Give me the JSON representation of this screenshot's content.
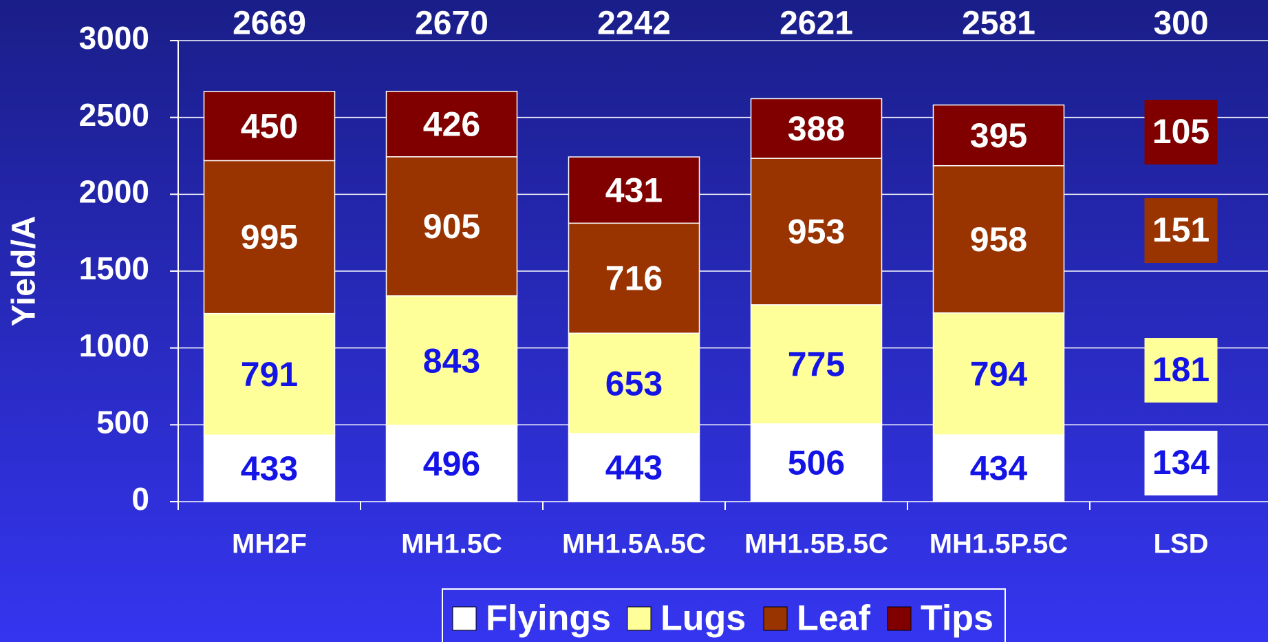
{
  "chart_data": {
    "type": "stacked_bar",
    "ylabel": "Yield/A",
    "categories": [
      "MH2F",
      "MH1.5C",
      "MH1.5A.5C",
      "MH1.5B.5C",
      "MH1.5P.5C"
    ],
    "series": [
      {
        "name": "Flyings",
        "color": "#ffffff",
        "label_color": "#1414e6",
        "values": [
          433,
          496,
          443,
          506,
          434
        ]
      },
      {
        "name": "Lugs",
        "color": "#ffff99",
        "label_color": "#1414e6",
        "values": [
          791,
          843,
          653,
          775,
          794
        ]
      },
      {
        "name": "Leaf",
        "color": "#993300",
        "label_color": "#ffffff",
        "values": [
          995,
          905,
          716,
          953,
          958
        ]
      },
      {
        "name": "Tips",
        "color": "#800000",
        "label_color": "#ffffff",
        "values": [
          450,
          426,
          431,
          388,
          395
        ]
      }
    ],
    "totals": [
      2669,
      2670,
      2242,
      2621,
      2581
    ],
    "lsd": {
      "label": "LSD",
      "total": 300,
      "values": [
        134,
        181,
        151,
        105
      ]
    },
    "ylim": [
      0,
      3000
    ],
    "yticks": [
      0,
      500,
      1000,
      1500,
      2000,
      2500,
      3000
    ],
    "grid": true
  }
}
